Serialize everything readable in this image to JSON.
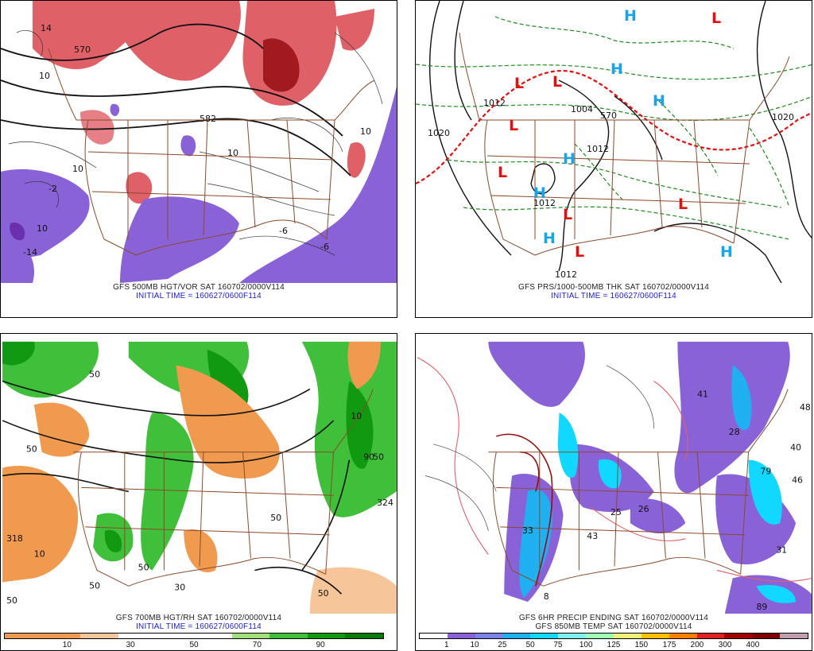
{
  "panels": {
    "top_left": {
      "caption_line1": "GFS 500MB HGT/VOR SAT 160702/0000V114",
      "caption_line2": "INITIAL TIME = 160627/0600F114",
      "contour_labels": [
        "570",
        "582",
        "10",
        "10",
        "10",
        "10",
        "10",
        "-6",
        "-6",
        "-2",
        "-14",
        "14"
      ]
    },
    "top_right": {
      "caption_line1": "GFS PRS/1000-500MB THK SAT 160702/0000V114",
      "caption_line2": "INITIAL TIME = 160627/0600F114",
      "contour_labels": [
        "1020",
        "1012",
        "1004",
        "1012",
        "1012",
        "1012",
        "1020",
        "570"
      ],
      "high_symbol": "H",
      "low_symbol": "L"
    },
    "bottom_left": {
      "caption_line1": "GFS 700MB HGT/RH SAT 160702/0000V114",
      "caption_line2": "INITIAL TIME = 160627/0600F114",
      "contour_labels": [
        "50",
        "50",
        "50",
        "10",
        "10",
        "50",
        "50",
        "318",
        "324",
        "50",
        "50",
        "50",
        "30",
        "90"
      ],
      "colorbar_ticks": [
        "10",
        "30",
        "50",
        "70",
        "90"
      ],
      "colorbar_colors": [
        "#f09a50",
        "#f09a50",
        "#f6c59a",
        "#ffffff",
        "#ffffff",
        "#ffffff",
        "#9fe07a",
        "#3fbf3a",
        "#119a11",
        "#0a7a0a"
      ]
    },
    "bottom_right": {
      "caption_line1": "GFS 6HR PRECIP ENDING SAT 160702/0000V114",
      "caption_line2": "GFS 850MB TEMP SAT 160702/0000V114",
      "contour_labels": [
        "41",
        "48",
        "40",
        "46",
        "79",
        "28",
        "33",
        "43",
        "26",
        "25",
        "31",
        "89",
        "8"
      ],
      "colorbar_ticks": [
        "1",
        "10",
        "25",
        "50",
        "75",
        "100",
        "125",
        "150",
        "175",
        "200",
        "300",
        "400"
      ],
      "colorbar_colors": [
        "#ffffff",
        "#8a62d8",
        "#7a82e8",
        "#1eb0f0",
        "#10d8ff",
        "#7ef0f0",
        "#a0ffb4",
        "#f0f078",
        "#ffc000",
        "#ff8000",
        "#e02020",
        "#a00000",
        "#800000",
        "#c0a0b0"
      ]
    }
  },
  "colors": {
    "state_lines": "#8b4a2a",
    "contour": "#111111",
    "thickness_dashed": "#1e8a1e",
    "freezing_line": "#e01010",
    "high": "#1aa4e8",
    "low": "#e01010",
    "caption_blue": "#1c1ccc",
    "vorticity_red": "#e06068",
    "vorticity_purple": "#8a62d8"
  }
}
